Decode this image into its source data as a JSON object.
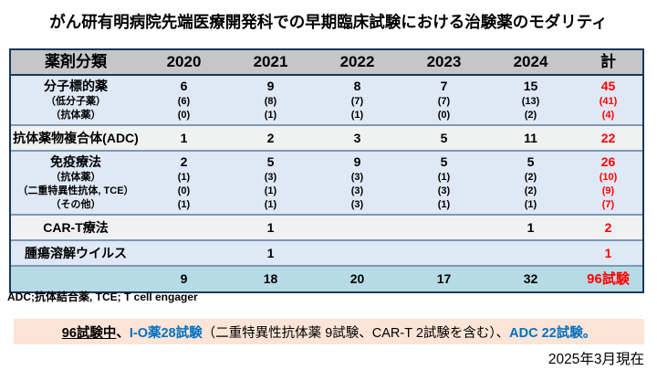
{
  "title": "がん研有明病院先端医療開発科での早期臨床試験における治験薬のモダリティ",
  "colors": {
    "header_bg": "#c6c6c6",
    "row_blue": "#dfe8f5",
    "row_white": "#f0f1f1",
    "row_total": "#b7dbe4",
    "table_border": "#17375e",
    "row_separator": "#7d99b8",
    "total_text": "#ff0000",
    "accent_blue_text": "#0070c0",
    "summary_box_bg": "#fce4d6"
  },
  "table": {
    "headers": [
      "薬剤分類",
      "2020",
      "2021",
      "2022",
      "2023",
      "2024",
      "計"
    ],
    "groups": [
      {
        "bg": "blue",
        "lines": [
          {
            "label": "分子標的薬",
            "main": true,
            "values": [
              "6",
              "9",
              "8",
              "7",
              "15"
            ],
            "total": "45"
          },
          {
            "label": "（低分子薬）",
            "main": false,
            "values": [
              "(6)",
              "(8)",
              "(7)",
              "(7)",
              "(13)"
            ],
            "total": "(41)"
          },
          {
            "label": "（抗体薬）",
            "main": false,
            "values": [
              "(0)",
              "(1)",
              "(1)",
              "(0)",
              "(2)"
            ],
            "total": "(4)"
          }
        ]
      },
      {
        "bg": "white",
        "lines": [
          {
            "label": "抗体薬物複合体(ADC)",
            "main": true,
            "values": [
              "1",
              "2",
              "3",
              "5",
              "11"
            ],
            "total": "22"
          }
        ]
      },
      {
        "bg": "blue",
        "lines": [
          {
            "label": "免疫療法",
            "main": true,
            "values": [
              "2",
              "5",
              "9",
              "5",
              "5"
            ],
            "total": "26"
          },
          {
            "label": "（抗体薬）",
            "main": false,
            "values": [
              "(1)",
              "(3)",
              "(3)",
              "(1)",
              "(2)"
            ],
            "total": "(10)"
          },
          {
            "label": "（二重特異性抗体, TCE）",
            "main": false,
            "values": [
              "(0)",
              "(1)",
              "(3)",
              "(3)",
              "(2)"
            ],
            "total": "(9)"
          },
          {
            "label": "（その他）",
            "main": false,
            "values": [
              "(1)",
              "(1)",
              "(3)",
              "(1)",
              "(1)"
            ],
            "total": "(7)"
          }
        ]
      },
      {
        "bg": "white",
        "lines": [
          {
            "label": "CAR-T療法",
            "main": true,
            "values": [
              "",
              "1",
              "",
              "",
              "1"
            ],
            "total": "2"
          }
        ]
      },
      {
        "bg": "blue",
        "lines": [
          {
            "label": "腫瘍溶解ウイルス",
            "main": true,
            "values": [
              "",
              "1",
              "",
              "",
              ""
            ],
            "total": "1"
          }
        ]
      },
      {
        "bg": "total",
        "lines": [
          {
            "label": "",
            "main": true,
            "values": [
              "9",
              "18",
              "20",
              "17",
              "32"
            ],
            "total": "96試験"
          }
        ]
      }
    ]
  },
  "footnote": "ADC;抗体結合薬, TCE; T cell engager",
  "summary_box": {
    "segments": [
      {
        "text": "96試験中",
        "style": "black-bold-underline"
      },
      {
        "text": "、",
        "style": "black-bold"
      },
      {
        "text": "I-O薬28試験",
        "style": "blue-bold"
      },
      {
        "text": "（二重特異性抗体薬 9試験、CAR-T 2試験を含む）、",
        "style": "black-regular"
      },
      {
        "text": "ADC 22試験。",
        "style": "blue-bold"
      }
    ]
  },
  "date_note": "2025年3月現在"
}
